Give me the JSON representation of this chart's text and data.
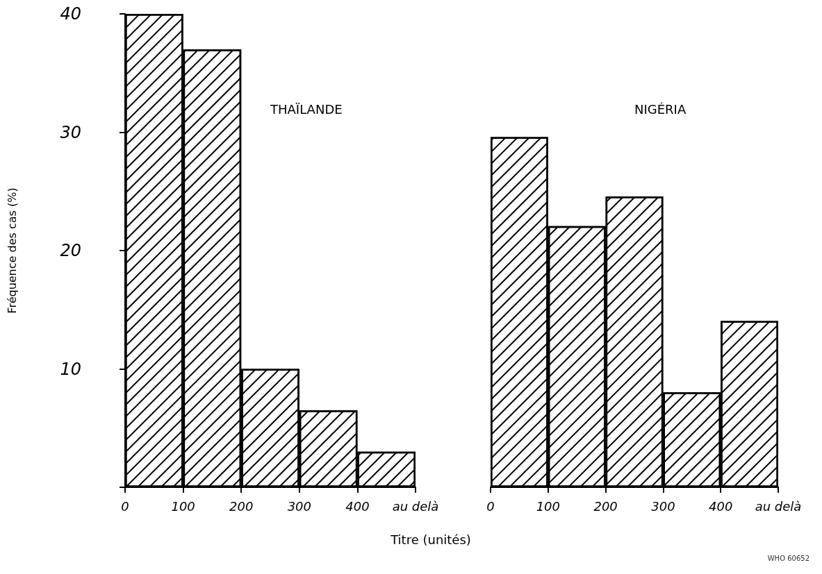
{
  "chart_data": [
    {
      "type": "histogram",
      "title": "THAÏLANDE",
      "xlabel": "Titre (unités)",
      "ylabel": "Fréquence des cas (%)",
      "bins": [
        0,
        100,
        200,
        300,
        400,
        500
      ],
      "values": [
        40,
        37,
        10,
        6.5,
        3
      ],
      "color": "#000000",
      "xlim": [
        0,
        500
      ],
      "xticks": [
        0,
        100,
        200,
        300,
        400,
        {
          "value": 500,
          "label": "au delà"
        }
      ],
      "ylim": [
        0,
        40
      ],
      "yticks": [
        {
          "value": 0,
          "label": null
        },
        10,
        20,
        30,
        40
      ],
      "grid": false
    },
    {
      "type": "histogram",
      "title": "NIGÉRIA",
      "annotations": [
        "WHO 60652"
      ],
      "bins": [
        0,
        100,
        200,
        300,
        400,
        500
      ],
      "values": [
        29.5,
        22,
        24.5,
        8,
        14
      ],
      "color": "#000000",
      "xlim": [
        0,
        500
      ],
      "xticks": [
        0,
        100,
        200,
        300,
        400,
        {
          "value": 500,
          "label": "au delà"
        }
      ],
      "ylim": [
        0,
        40
      ],
      "yticks": [
        0,
        10,
        20,
        30,
        40
      ],
      "tick_labels": "x",
      "grid": false
    }
  ]
}
